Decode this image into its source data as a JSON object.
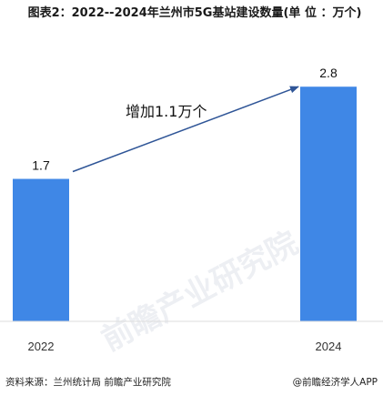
{
  "title": "图表2：2022--2024年兰州市5G基站建设数量(单 位 ：万个)",
  "annotation": "增加1.1万个",
  "watermark": "前瞻产业研究院",
  "source": "资料来源：兰州统计局 前瞻产业研究院",
  "brand": "@前瞻经济学人APP",
  "colors": {
    "bar": "#3f87e6",
    "arrow": "#2f5597"
  },
  "chart_data": {
    "type": "bar",
    "categories": [
      "2022",
      "2024"
    ],
    "values": [
      1.7,
      2.8
    ],
    "value_labels": [
      "1.7",
      "2.8"
    ],
    "title": "图表2：2022--2024年兰州市5G基站建设数量(单 位 ：万个)",
    "ylim": [
      0,
      3.4
    ],
    "grid": false,
    "legend": false
  }
}
